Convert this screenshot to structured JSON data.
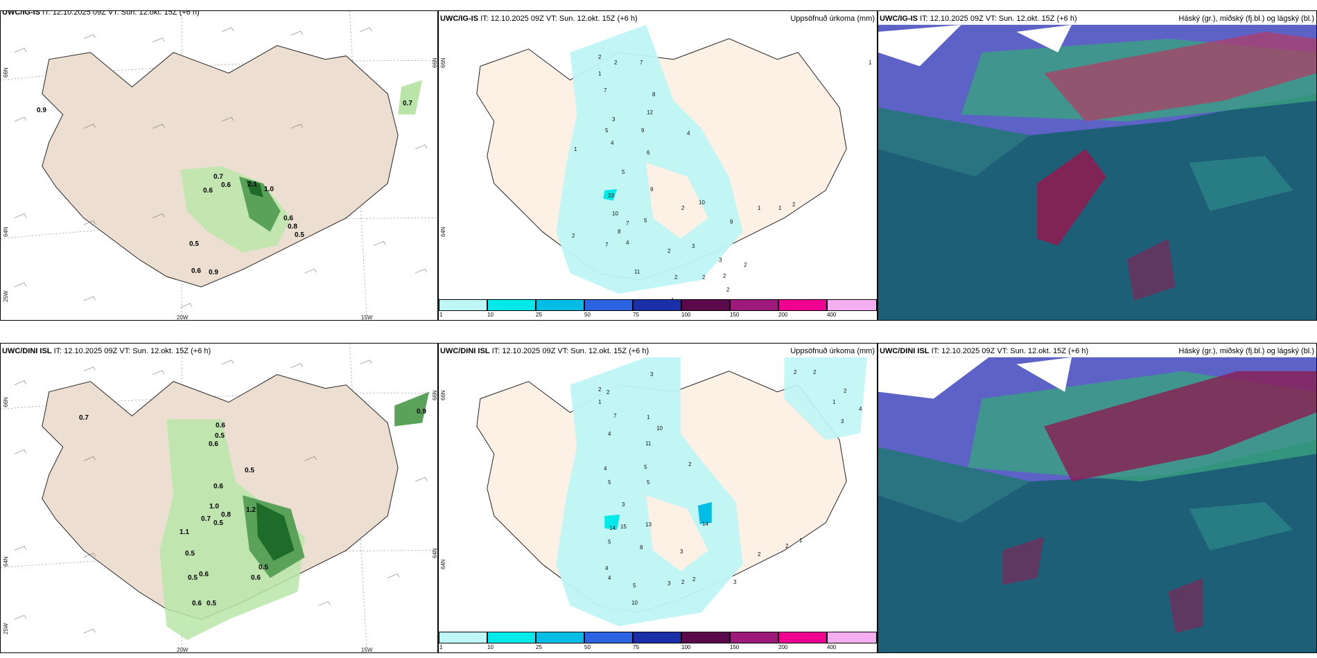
{
  "panels": {
    "ig_wind": {
      "model": "UWC/IG-IS",
      "header_rest": "IT: 12.10.2025 09Z VT: Sun. 12.okt. 15Z (+6 h)",
      "header_tail": "h)",
      "values": [
        "0.9",
        "0.7",
        "0.7",
        "2.1",
        "1.0",
        "0.6",
        "0.6",
        "0.6",
        "0.8",
        "0.5",
        "0.5",
        "0.6",
        "0.9"
      ]
    },
    "ig_precip": {
      "model": "UWC/IG-IS",
      "header_rest": "IT: 12.10.2025 09Z VT: Sun. 12.okt. 15Z (+6 h)",
      "right_title": "Uppsöfnuð úrkoma (mm)",
      "values": [
        "2",
        "2",
        "1",
        "7",
        "7",
        "3",
        "8",
        "5",
        "9",
        "4",
        "12",
        "1",
        "1",
        "6",
        "4",
        "5",
        "23",
        "9",
        "10",
        "7",
        "5",
        "8",
        "2",
        "2",
        "10",
        "9",
        "1",
        "1",
        "2",
        "7",
        "4",
        "2",
        "3",
        "3",
        "2",
        "2",
        "2",
        "11",
        "2",
        "2",
        "1"
      ]
    },
    "ig_cloud": {
      "model": "UWC/IG-IS",
      "header_rest": "IT: 12.10.2025 09Z VT: Sun. 12.okt. 15Z (+6 h)",
      "right_title": "Háský (gr.), miðský (fj.bl.) og lágský (bl.)"
    },
    "dini_wind": {
      "model": "UWC/DINI ISL",
      "header_rest": "IT: 12.10.2025 09Z VT: Sun. 12.okt. 15Z (+6 h)",
      "values": [
        "0.7",
        "0.9",
        "0.6",
        "0.5",
        "0.6",
        "0.5",
        "0.6",
        "1.0",
        "0.7",
        "0.8",
        "0.5",
        "1.2",
        "1.1",
        "0.5",
        "0.5",
        "0.6",
        "0.6",
        "0.5",
        "0.6",
        "0.5"
      ]
    },
    "dini_precip": {
      "model": "UWC/DINI ISL",
      "header_rest": "IT: 12.10.2025 09Z VT: Sun. 12.okt. 15Z (+6 h)",
      "right_title": "Uppsöfnuð úrkoma (mm)",
      "values": [
        "3",
        "2",
        "2",
        "2",
        "2",
        "1",
        "4",
        "7",
        "10",
        "11",
        "1",
        "4",
        "5",
        "5",
        "2",
        "3",
        "5",
        "14",
        "15",
        "13",
        "14",
        "8",
        "5",
        "3",
        "4",
        "4",
        "5",
        "3",
        "10",
        "2",
        "2",
        "3",
        "2",
        "2",
        "1",
        "1",
        "2",
        "4",
        "3"
      ]
    },
    "dini_cloud": {
      "model": "UWC/DINI ISL",
      "header_rest": "IT: 12.10.2025 09Z VT: Sun. 12.okt. 15Z (+6 h)",
      "right_title": "Háský (gr.), miðský (fj.bl.) og lágský (bl.)"
    }
  },
  "axes": {
    "lat66": "66N",
    "lat64": "64N",
    "lon25": "25W",
    "lon20": "20W",
    "lon15": "15W"
  },
  "colorbar": {
    "ticks": [
      "1",
      "10",
      "25",
      "50",
      "75",
      "100",
      "150",
      "200",
      "400"
    ],
    "colors": [
      "#bff6f6",
      "#00eaea",
      "#00bde6",
      "#2c63e0",
      "#1a2fa8",
      "#5a0a4a",
      "#9e1a7a",
      "#f00090",
      "#f5aef0"
    ]
  }
}
